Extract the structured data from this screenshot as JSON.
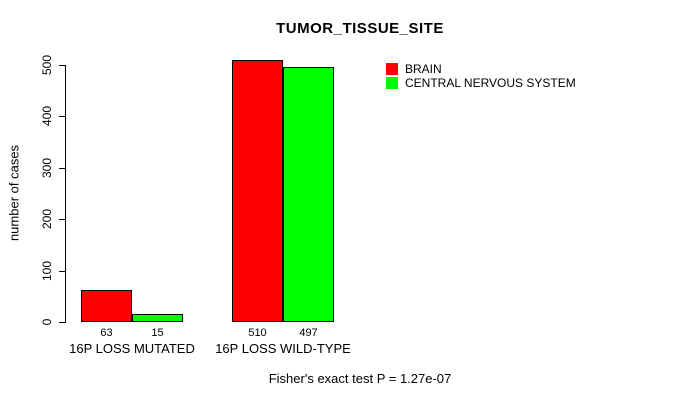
{
  "chart_data": {
    "type": "bar",
    "title": "TUMOR_TISSUE_SITE",
    "ylabel": "number of cases",
    "xlabel": "",
    "ylim": [
      0,
      500
    ],
    "yticks": [
      0,
      100,
      200,
      300,
      400,
      500
    ],
    "grid": false,
    "legend_position": "top-right-inside",
    "categories": [
      "16P LOSS MUTATED",
      "16P LOSS WILD-TYPE"
    ],
    "series": [
      {
        "name": "BRAIN",
        "color": "#FF0000",
        "values": [
          63,
          510
        ]
      },
      {
        "name": "CENTRAL NERVOUS SYSTEM",
        "color": "#00FF00",
        "values": [
          15,
          497
        ]
      }
    ],
    "bar_value_labels": [
      [
        "63",
        "15"
      ],
      [
        "510",
        "497"
      ]
    ],
    "caption": "Fisher's exact test P = 1.27e-07"
  },
  "colors": {
    "bar_border": "#000000",
    "axis": "#000000",
    "background": "#FFFFFF"
  }
}
